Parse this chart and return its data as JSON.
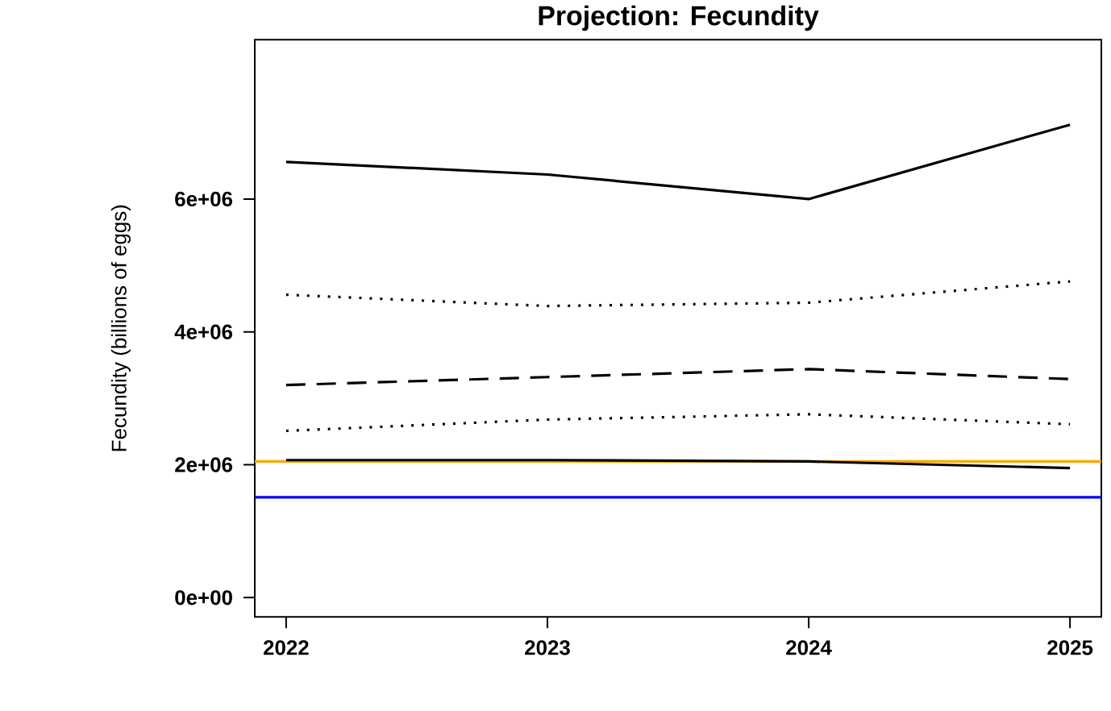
{
  "chart_data": {
    "type": "line",
    "title": "Projection:  Fecundity",
    "ylabel": "Fecundity (billions of eggs)",
    "x": [
      2022,
      2023,
      2024,
      2025
    ],
    "series": [
      {
        "color": "#000000",
        "line_style": "solid",
        "values": [
          6560000,
          6370000,
          6000000,
          7120000
        ]
      },
      {
        "color": "#000000",
        "line_style": "dotted",
        "values": [
          4560000,
          4390000,
          4440000,
          4760000
        ]
      },
      {
        "color": "#000000",
        "line_style": "dashed",
        "values": [
          3200000,
          3320000,
          3440000,
          3290000
        ]
      },
      {
        "color": "#000000",
        "line_style": "dotted",
        "values": [
          2510000,
          2680000,
          2760000,
          2610000
        ]
      },
      {
        "color": "#000000",
        "line_style": "solid",
        "values": [
          2070000,
          2070000,
          2050000,
          1950000
        ]
      }
    ],
    "ref_lines": [
      {
        "axis": "y",
        "value": 2050000,
        "color": "#ffa500"
      },
      {
        "axis": "y",
        "value": 1510000,
        "color": "#0000ff"
      }
    ],
    "xlim": [
      2021.88,
      2025.12
    ],
    "ylim": [
      -290000,
      8400000
    ],
    "xticks": [
      2022,
      2023,
      2024,
      2025
    ],
    "yticks": [
      {
        "value": 0,
        "label": "0e+00"
      },
      {
        "value": 2000000,
        "label": "2e+06"
      },
      {
        "value": 4000000,
        "label": "4e+06"
      },
      {
        "value": 6000000,
        "label": "6e+06"
      }
    ],
    "grid": false,
    "marker": "none"
  }
}
